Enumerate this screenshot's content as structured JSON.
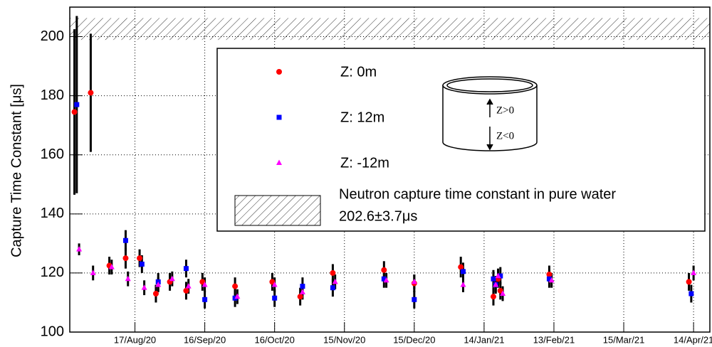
{
  "chart_data": {
    "type": "scatter",
    "y_label": "Capture Time Constant [μs]",
    "xlim": [
      "2020-07-20",
      "2021-04-21"
    ],
    "xticks": [
      {
        "value": "2020-08-17",
        "label": "17/Aug/20"
      },
      {
        "value": "2020-09-16",
        "label": "16/Sep/20"
      },
      {
        "value": "2020-10-16",
        "label": "16/Oct/20"
      },
      {
        "value": "2020-11-15",
        "label": "15/Nov/20"
      },
      {
        "value": "2020-12-15",
        "label": "15/Dec/20"
      },
      {
        "value": "2021-01-14",
        "label": "14/Jan/21"
      },
      {
        "value": "2021-02-13",
        "label": "13/Feb/21"
      },
      {
        "value": "2021-03-15",
        "label": "15/Mar/21"
      },
      {
        "value": "2021-04-14",
        "label": "14/Apr/21"
      }
    ],
    "ylim": [
      100,
      210
    ],
    "yticks": [
      100,
      120,
      140,
      160,
      180,
      200
    ],
    "grid": true,
    "reference": {
      "value": 202.6,
      "error": 3.7,
      "label": "Neutron capture time constant in pure water",
      "value_label": "202.6±3.7μs"
    },
    "inset": {
      "upper_label": "Z>0",
      "lower_label": "Z<0"
    },
    "series": [
      {
        "name": "Z: 0m",
        "color": "#ff0000",
        "marker": "circle",
        "x": [
          "2020-07-22",
          "2020-07-29",
          "2020-08-06",
          "2020-08-13",
          "2020-08-19",
          "2020-08-26",
          "2020-09-01",
          "2020-09-08",
          "2020-09-15",
          "2020-09-29",
          "2020-10-15",
          "2020-10-27",
          "2020-11-10",
          "2020-12-02",
          "2020-12-15",
          "2021-01-04",
          "2021-01-18",
          "2021-01-20",
          "2021-01-21",
          "2021-02-11",
          "2021-04-12"
        ],
        "values": [
          174.5,
          181,
          122.5,
          125,
          125,
          113,
          117,
          114,
          117,
          115.5,
          117,
          112,
          120,
          121,
          116.5,
          122,
          112,
          118,
          114,
          119.5,
          117
        ],
        "errors": [
          28,
          20,
          3,
          3.5,
          3,
          3,
          3,
          3,
          3,
          3,
          3,
          3,
          3,
          3,
          3,
          3.5,
          3,
          3,
          3,
          3,
          3
        ]
      },
      {
        "name": "Z: 12m",
        "color": "#0000ff",
        "marker": "square",
        "x": [
          "2020-07-23",
          "2020-08-13",
          "2020-08-20",
          "2020-08-27",
          "2020-09-08",
          "2020-09-16",
          "2020-09-29",
          "2020-10-16",
          "2020-10-28",
          "2020-11-10",
          "2020-12-02",
          "2020-12-15",
          "2021-01-05",
          "2021-01-18",
          "2021-01-19",
          "2021-01-21",
          "2021-02-11",
          "2021-04-13"
        ],
        "values": [
          177,
          131,
          123,
          117,
          121.5,
          111,
          111.5,
          111.5,
          115.5,
          115,
          118,
          111,
          120.5,
          118,
          116,
          119,
          118,
          113
        ],
        "errors": [
          30,
          3.5,
          3,
          3,
          3,
          3,
          3,
          3,
          3,
          3,
          3,
          3,
          3,
          3,
          3,
          3,
          3,
          3
        ]
      },
      {
        "name": "Z: -12m",
        "color": "#ff00ff",
        "marker": "triangle",
        "x": [
          "2020-07-24",
          "2020-07-30",
          "2020-08-07",
          "2020-08-14",
          "2020-08-21",
          "2020-08-27",
          "2020-09-02",
          "2020-09-09",
          "2020-09-16",
          "2020-09-30",
          "2020-10-16",
          "2020-10-28",
          "2020-11-11",
          "2020-12-03",
          "2020-12-15",
          "2021-01-05",
          "2021-01-19",
          "2021-01-20",
          "2021-01-22",
          "2021-02-12",
          "2021-04-14"
        ],
        "values": [
          128,
          120,
          122,
          118,
          115,
          116,
          118,
          115.5,
          116,
          112,
          116,
          113.5,
          117,
          117.5,
          117,
          116,
          116,
          119,
          113,
          117.5,
          120
        ],
        "errors": [
          2,
          2.5,
          2.5,
          2.5,
          2.5,
          2.5,
          2.5,
          2.5,
          2.5,
          2.5,
          2.5,
          2.5,
          2.5,
          2.5,
          2.5,
          2.5,
          2.5,
          2.5,
          2.5,
          2.5,
          2.5
        ]
      }
    ]
  }
}
